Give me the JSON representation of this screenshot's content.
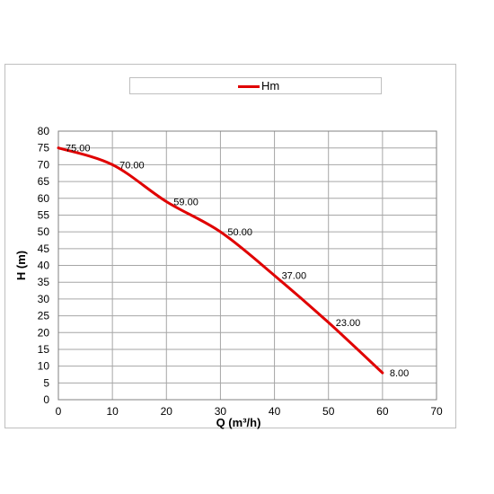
{
  "chart_data": {
    "type": "line",
    "title": "",
    "xlabel": "Q (m³/h)",
    "ylabel": "H (m)",
    "xlim": [
      0,
      70
    ],
    "ylim": [
      0,
      80
    ],
    "x_ticks": [
      0,
      10,
      20,
      30,
      40,
      50,
      60,
      70
    ],
    "y_ticks": [
      0,
      5,
      10,
      15,
      20,
      25,
      30,
      35,
      40,
      45,
      50,
      55,
      60,
      65,
      70,
      75,
      80
    ],
    "grid": true,
    "smooth": true,
    "legend": "top",
    "series": [
      {
        "name": "Hm",
        "color": "#e00000",
        "x": [
          0,
          10,
          20,
          30,
          40,
          50,
          60
        ],
        "values": [
          75,
          70,
          59,
          50,
          37,
          23,
          8
        ],
        "data_labels": [
          "75.00",
          "70.00",
          "59.00",
          "50.00",
          "37.00",
          "23.00",
          "8.00"
        ]
      }
    ]
  }
}
